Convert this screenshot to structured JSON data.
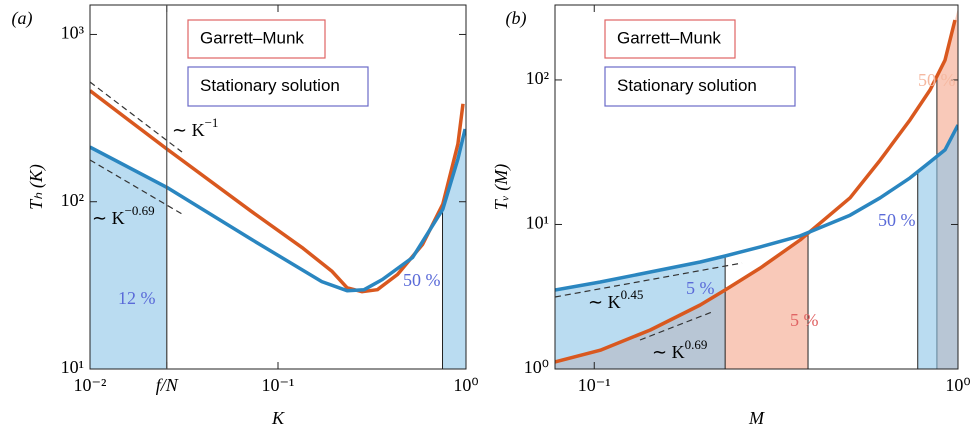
{
  "chart_data": [
    {
      "type": "line",
      "panel_label": "(a)",
      "xlabel": "K",
      "ylabel": "Tₕ (K)",
      "log_x": true,
      "log_y": true,
      "xlim": [
        0.01,
        1
      ],
      "ylim": [
        10,
        1500
      ],
      "xticks": [
        {
          "value": 0.01,
          "label": "10⁻²"
        },
        {
          "value": 0.0256,
          "label": "f/N"
        },
        {
          "value": 0.1,
          "label": "10⁻¹"
        },
        {
          "value": 1,
          "label": "10⁰"
        }
      ],
      "yticks": [
        {
          "value": 10,
          "label": "10¹"
        },
        {
          "value": 100,
          "label": "10²"
        },
        {
          "value": 1000,
          "label": "10³"
        }
      ],
      "series": [
        {
          "name": "Garrett–Munk",
          "color": "#d9581f",
          "legend_color": "#e06464",
          "x": [
            0.01,
            0.0256,
            0.0721,
            0.134,
            0.194,
            0.233,
            0.28,
            0.338,
            0.432,
            0.588,
            0.753,
            0.906,
            0.964
          ],
          "values": [
            461,
            207,
            87.7,
            53.3,
            38.3,
            30.6,
            29.0,
            29.8,
            36.7,
            55.6,
            96.6,
            221,
            385
          ],
          "shade": [],
          "shade_color": "#f5a58a"
        },
        {
          "name": "Stationary solution",
          "color": "#2a86c0",
          "legend_color": "#6a6ac8",
          "x": [
            0.01,
            0.0256,
            0.0721,
            0.171,
            0.233,
            0.287,
            0.359,
            0.52,
            0.753,
            0.906,
            0.989
          ],
          "values": [
            212,
            122,
            59.6,
            33.3,
            29.4,
            29.8,
            34.3,
            46.4,
            90.2,
            180,
            272
          ],
          "shade": [
            [
              0.01,
              0.0256
            ],
            [
              0.75,
              1
            ]
          ],
          "shade_color": "#8cc4e8"
        }
      ],
      "annotations": [
        {
          "text": "∼ K",
          "sup": "−1",
          "color": "#000000"
        },
        {
          "text": "∼ K",
          "sup": "−0.69",
          "color": "#000000"
        },
        {
          "text": "12 %",
          "color": "#5a6ad8"
        },
        {
          "text": "50 %",
          "color": "#5a6ad8"
        }
      ]
    },
    {
      "type": "line",
      "panel_label": "(b)",
      "xlabel": "M",
      "ylabel": "Tᵥ (M)",
      "log_x": true,
      "log_y": true,
      "xlim": [
        0.078,
        1
      ],
      "ylim": [
        1,
        330
      ],
      "xticks": [
        {
          "value": 0.1,
          "label": "10⁻¹"
        },
        {
          "value": 1,
          "label": "10⁰"
        }
      ],
      "yticks": [
        {
          "value": 1,
          "label": "10⁰"
        },
        {
          "value": 10,
          "label": "10¹"
        },
        {
          "value": 100,
          "label": "10²"
        }
      ],
      "series": [
        {
          "name": "Garrett–Munk",
          "color": "#d9581f",
          "legend_color": "#e06464",
          "x": [
            0.078,
            0.1039,
            0.1426,
            0.1955,
            0.229,
            0.286,
            0.368,
            0.505,
            0.611,
            0.738,
            0.838,
            0.921,
            0.981
          ],
          "values": [
            1.12,
            1.35,
            1.86,
            2.77,
            3.52,
            5.0,
            7.81,
            15.3,
            27.9,
            52.9,
            85.3,
            137,
            260
          ],
          "shade": [
            [
              0.078,
              0.387
            ],
            [
              0.875,
              1
            ]
          ],
          "shade_color": "#f5a58a"
        },
        {
          "name": "Stationary solution",
          "color": "#2a86c0",
          "legend_color": "#6a6ac8",
          "x": [
            0.078,
            0.1039,
            0.1426,
            0.1955,
            0.229,
            0.286,
            0.368,
            0.505,
            0.611,
            0.738,
            0.838,
            0.921,
            1
          ],
          "values": [
            3.52,
            4.0,
            4.69,
            5.5,
            6.05,
            6.99,
            8.33,
            11.6,
            15.3,
            21.0,
            27.1,
            32.8,
            48.8
          ],
          "shade": [
            [
              0.078,
              0.229
            ],
            [
              0.775,
              1
            ]
          ],
          "shade_color": "#8cc4e8"
        }
      ],
      "annotations": [
        {
          "text": "5 %",
          "color": "#5a6ad8"
        },
        {
          "text": "5 %",
          "color": "#e06464"
        },
        {
          "text": "50 %",
          "color": "#5a6ad8"
        },
        {
          "text": "50 %",
          "color": "#f5b8a0"
        },
        {
          "text": "∼ K",
          "sup": "0.45",
          "color": "#000000"
        },
        {
          "text": "∼ K",
          "sup": "0.69",
          "color": "#000000"
        }
      ]
    }
  ]
}
